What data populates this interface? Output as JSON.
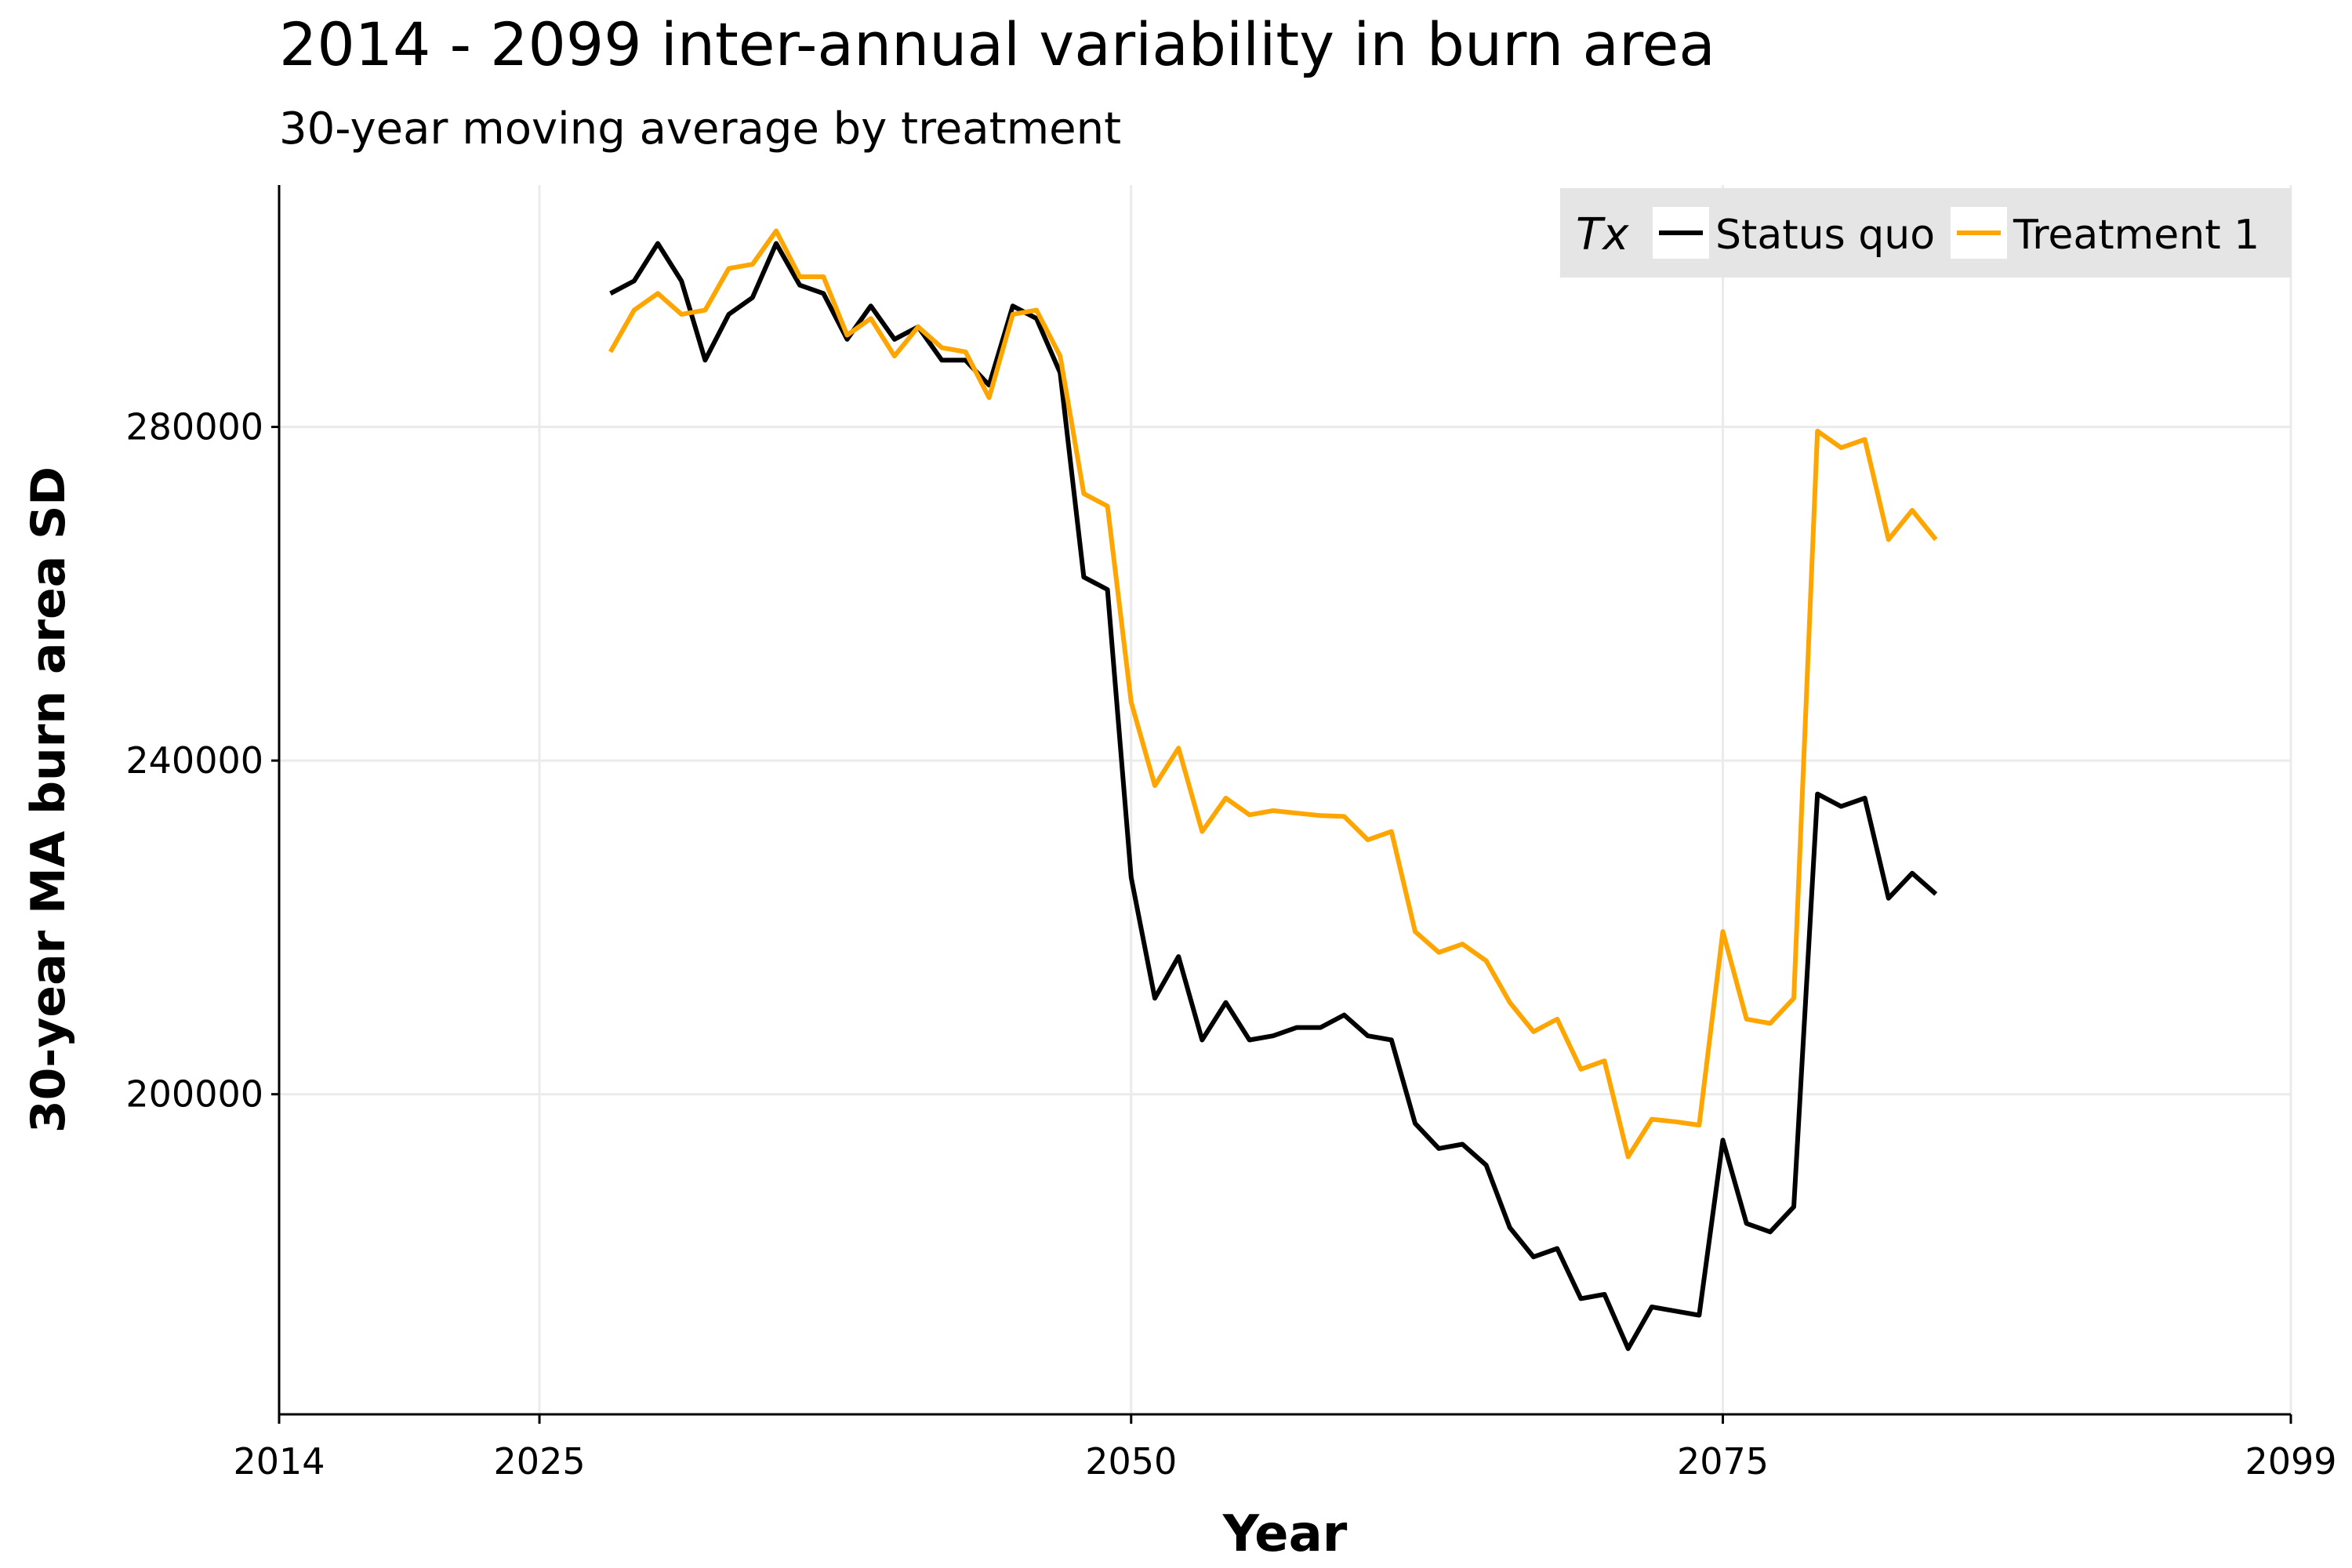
{
  "chart_data": {
    "type": "line",
    "title": "2014 - 2099 inter-annual variability in burn area",
    "subtitle": "30-year moving average by treatment",
    "xlabel": "Year",
    "ylabel": "30-year MA burn area SD",
    "xlim": [
      2014,
      2099
    ],
    "ylim": [
      162000,
      309000
    ],
    "x_ticks": [
      2014,
      2025,
      2050,
      2075,
      2099
    ],
    "y_ticks": [
      200000,
      240000,
      280000
    ],
    "grid": true,
    "legend": {
      "title": "Tx",
      "position": "top-right"
    },
    "x": [
      2028,
      2029,
      2030,
      2031,
      2032,
      2033,
      2034,
      2035,
      2036,
      2037,
      2038,
      2039,
      2040,
      2041,
      2042,
      2043,
      2044,
      2045,
      2046,
      2047,
      2048,
      2049,
      2050,
      2051,
      2052,
      2053,
      2054,
      2055,
      2056,
      2057,
      2058,
      2059,
      2060,
      2061,
      2062,
      2063,
      2064,
      2065,
      2066,
      2067,
      2068,
      2069,
      2070,
      2071,
      2072,
      2073,
      2074,
      2075,
      2076,
      2077,
      2078,
      2079,
      2080,
      2081,
      2082,
      2083,
      2084
    ],
    "series": [
      {
        "name": "Status quo",
        "color": "#000000",
        "values": [
          296000,
          297500,
          302000,
          297500,
          288000,
          293500,
          295500,
          302000,
          297000,
          296000,
          290500,
          294500,
          290500,
          292000,
          288000,
          288000,
          285000,
          294500,
          293000,
          286500,
          262000,
          260500,
          226000,
          211500,
          216500,
          206500,
          211000,
          206500,
          207000,
          208000,
          208000,
          209500,
          207000,
          206500,
          196500,
          193500,
          194000,
          191500,
          184000,
          180500,
          181500,
          175500,
          176000,
          169500,
          174500,
          174000,
          173500,
          194500,
          184500,
          183500,
          186500,
          236000,
          234500,
          235500,
          223500,
          226500,
          224000
        ]
      },
      {
        "name": "Treatment 1",
        "color": "#FFA500",
        "values": [
          289000,
          294000,
          296000,
          293500,
          294000,
          299000,
          299500,
          303500,
          298000,
          298000,
          291000,
          293000,
          288500,
          292000,
          289500,
          289000,
          283500,
          293500,
          294000,
          288500,
          272000,
          270500,
          247000,
          237000,
          241500,
          231500,
          235500,
          233500,
          234000,
          233700,
          233400,
          233300,
          230500,
          231500,
          219500,
          217000,
          218000,
          216000,
          211000,
          207500,
          209000,
          203000,
          204000,
          192500,
          197000,
          196700,
          196300,
          219500,
          209000,
          208500,
          211500,
          279500,
          277500,
          278500,
          266500,
          270000,
          266500
        ]
      }
    ]
  }
}
